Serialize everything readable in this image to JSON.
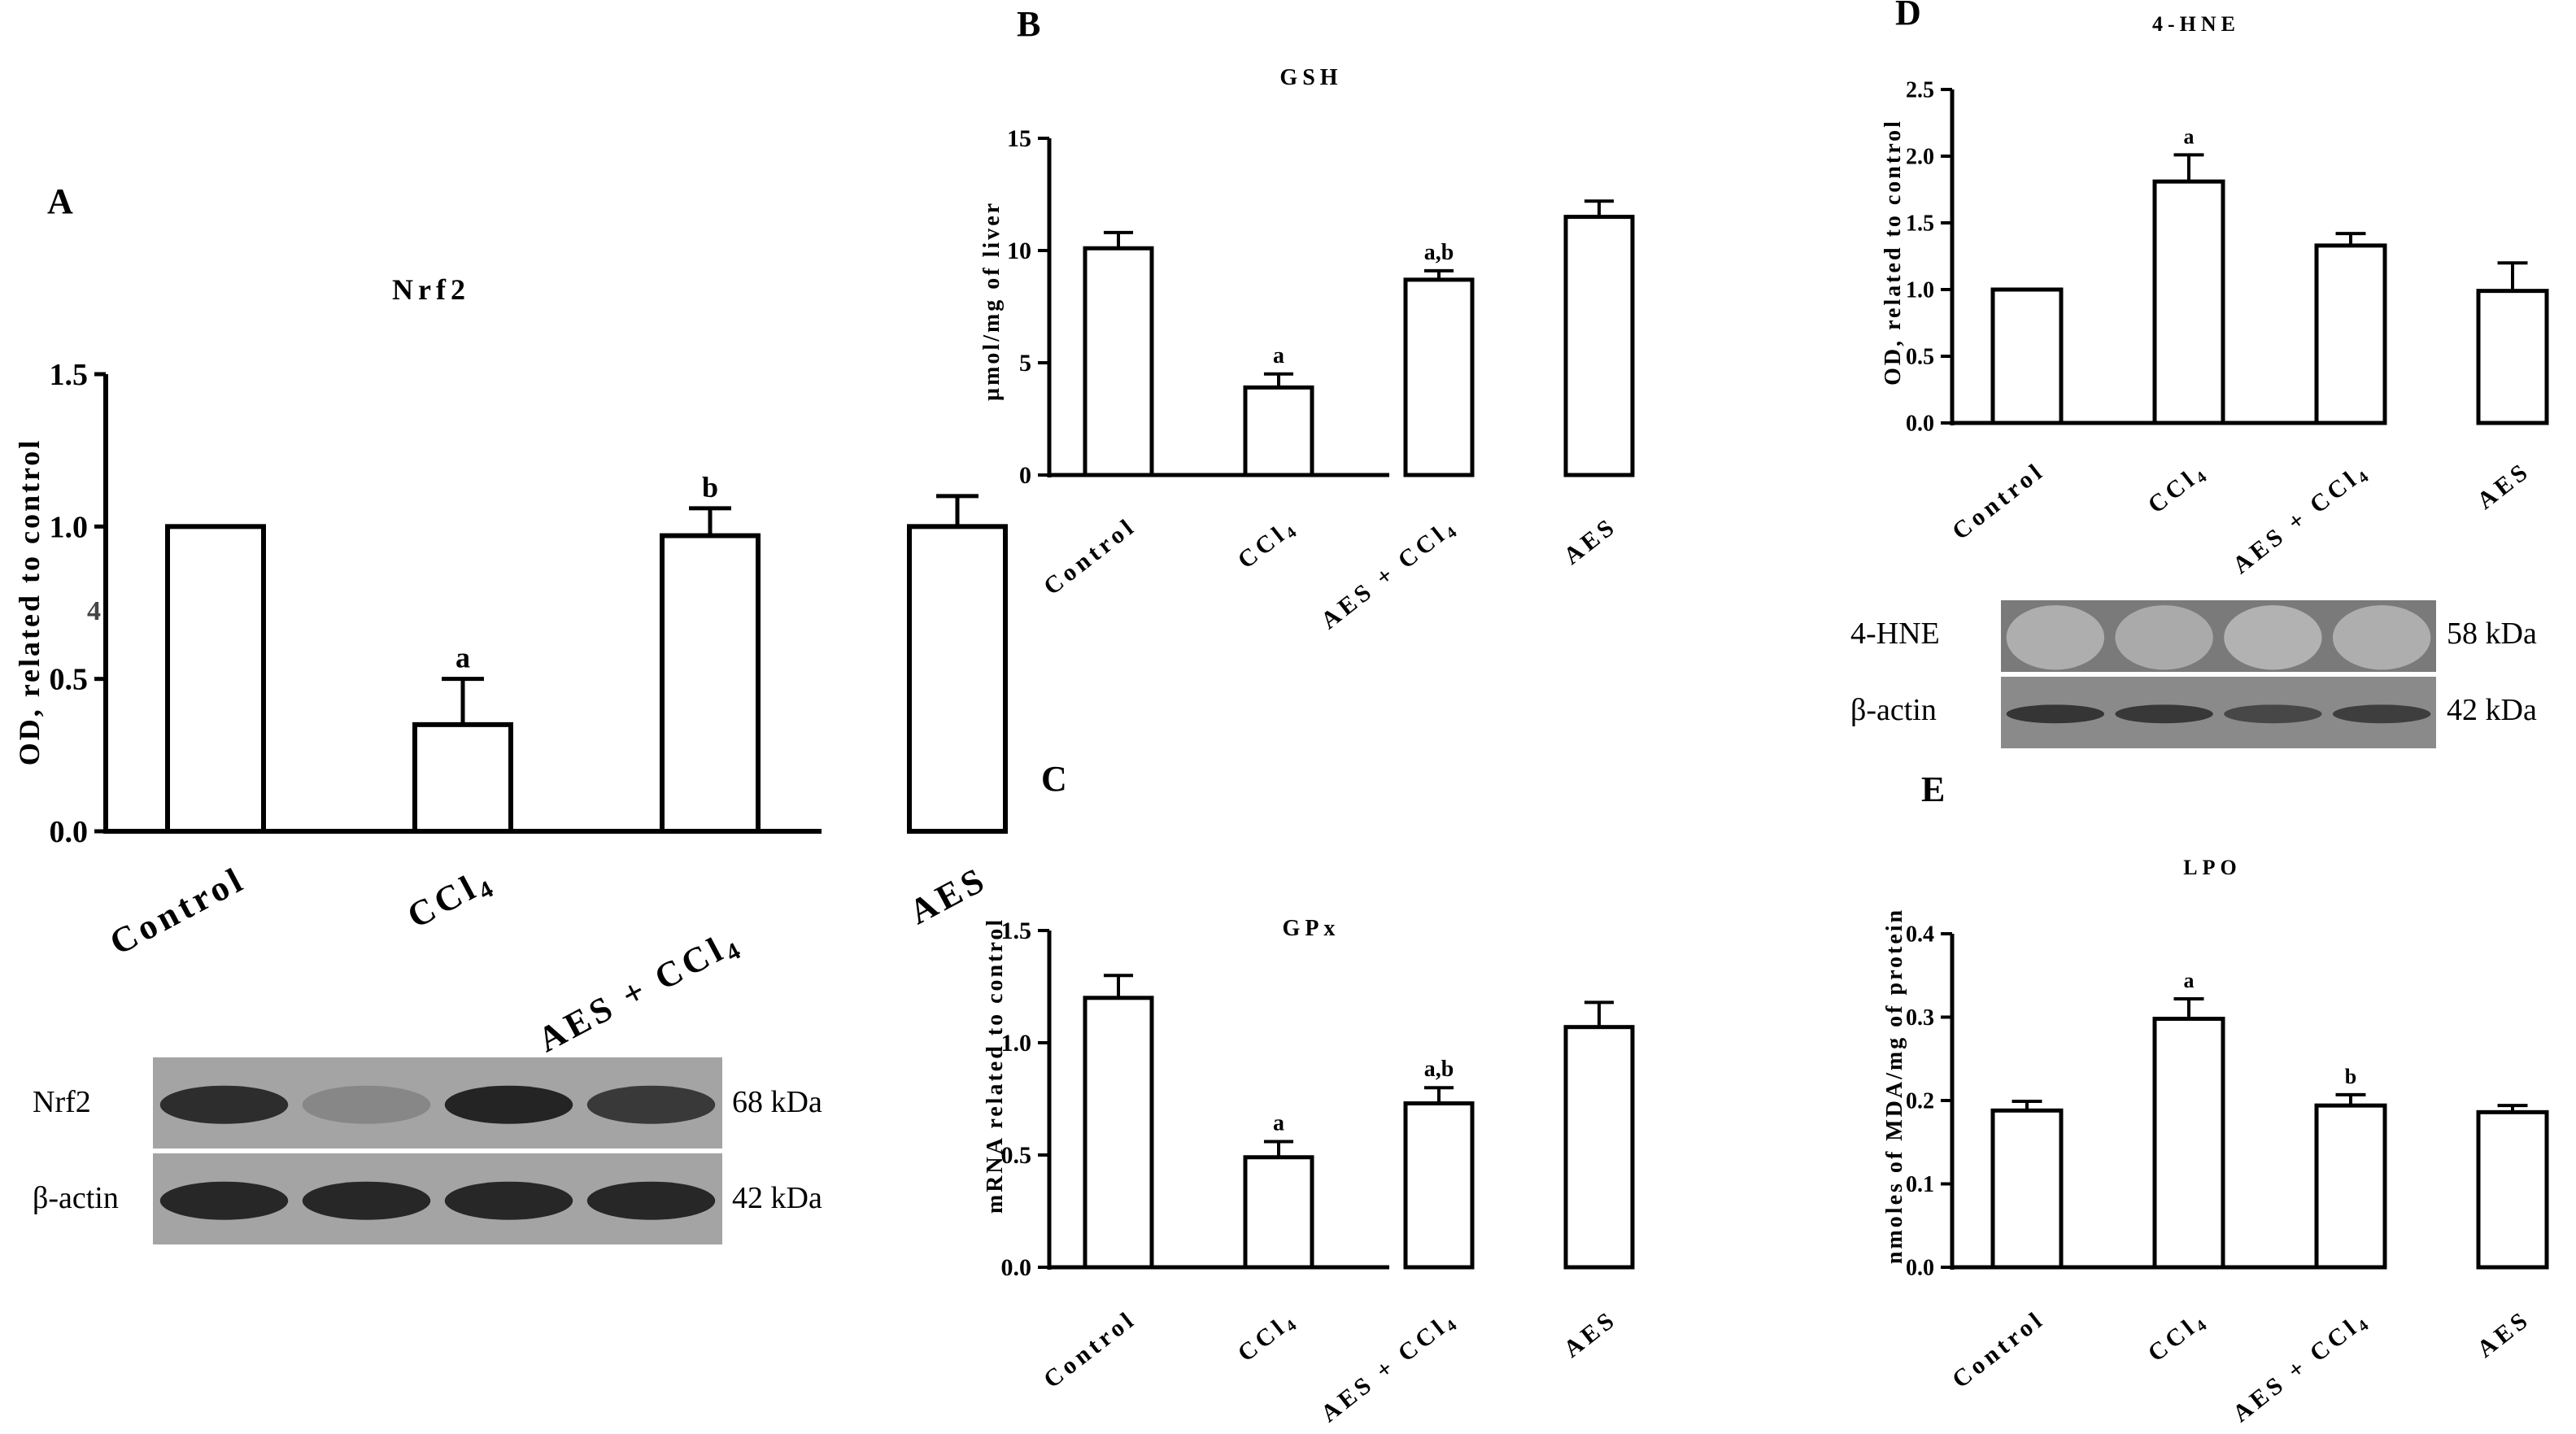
{
  "chart_data": [
    {
      "id": "A",
      "type": "bar",
      "panel_label": "A",
      "title": "Nrf2",
      "ylabel": "OD, related to control",
      "ylim": [
        0,
        1.5
      ],
      "yticks": [
        "0.0",
        "0.5",
        "1.0",
        "1.5"
      ],
      "categories": [
        "Control",
        "CCl4",
        "AES + CCl4",
        "AES"
      ],
      "values": [
        1.0,
        0.35,
        0.97,
        1.0
      ],
      "errors": [
        0,
        0.15,
        0.09,
        0.1
      ],
      "annotations": [
        "",
        "a",
        "b",
        ""
      ],
      "stray_mark": "4",
      "blot": {
        "rows": [
          {
            "label": "Nrf2",
            "kda": "68 kDa",
            "intensity": [
              0.85,
              0.35,
              0.9,
              0.78
            ]
          },
          {
            "label": "β-actin",
            "kda": "42 kDa",
            "intensity": [
              0.88,
              0.88,
              0.88,
              0.88
            ]
          }
        ]
      }
    },
    {
      "id": "B",
      "type": "bar",
      "panel_label": "B",
      "title": "GSH",
      "ylabel": "µmol/mg of liver",
      "ylim": [
        0,
        15
      ],
      "yticks": [
        "0",
        "5",
        "10",
        "15"
      ],
      "categories": [
        "Control",
        "CCl4",
        "AES + CCl4",
        "AES"
      ],
      "values": [
        10.1,
        3.9,
        8.7,
        11.5
      ],
      "errors": [
        0.7,
        0.6,
        0.4,
        0.7
      ],
      "annotations": [
        "",
        "a",
        "a,b",
        ""
      ]
    },
    {
      "id": "C",
      "type": "bar",
      "panel_label": "C",
      "title": "GPx",
      "ylabel": "mRNA related to control",
      "ylim": [
        0,
        1.5
      ],
      "yticks": [
        "0.0",
        "0.5",
        "1.0",
        "1.5"
      ],
      "categories": [
        "Control",
        "CCl4",
        "AES + CCl4",
        "AES"
      ],
      "values": [
        1.2,
        0.49,
        0.73,
        1.07
      ],
      "errors": [
        0.1,
        0.07,
        0.07,
        0.11
      ],
      "annotations": [
        "",
        "a",
        "a,b",
        ""
      ]
    },
    {
      "id": "D",
      "type": "bar",
      "panel_label": "D",
      "title": "4-HNE",
      "ylabel": "OD, related to control",
      "ylim": [
        0,
        2.5
      ],
      "yticks": [
        "0.0",
        "0.5",
        "1.0",
        "1.5",
        "2.0",
        "2.5"
      ],
      "categories": [
        "Control",
        "CCl4",
        "AES + CCl4",
        "AES"
      ],
      "values": [
        1.0,
        1.81,
        1.33,
        0.99
      ],
      "errors": [
        0,
        0.2,
        0.09,
        0.21
      ],
      "annotations": [
        "",
        "a",
        "",
        ""
      ],
      "blot": {
        "rows": [
          {
            "label": "4-HNE",
            "kda": "58 kDa",
            "intensity": [
              0.12,
              0.14,
              0.1,
              0.12
            ]
          },
          {
            "label": "β-actin",
            "kda": "42 kDa",
            "intensity": [
              0.8,
              0.78,
              0.7,
              0.75
            ]
          }
        ]
      }
    },
    {
      "id": "E",
      "type": "bar",
      "panel_label": "E",
      "title": "LPO",
      "ylabel": "nmoles of MDA/mg of protein",
      "ylim": [
        0,
        0.4
      ],
      "yticks": [
        "0.0",
        "0.1",
        "0.2",
        "0.3",
        "0.4"
      ],
      "categories": [
        "Control",
        "CCl4",
        "AES + CCl4",
        "AES"
      ],
      "values": [
        0.188,
        0.298,
        0.194,
        0.186
      ],
      "errors": [
        0.011,
        0.024,
        0.013,
        0.008
      ],
      "annotations": [
        "",
        "a",
        "b",
        ""
      ]
    }
  ]
}
